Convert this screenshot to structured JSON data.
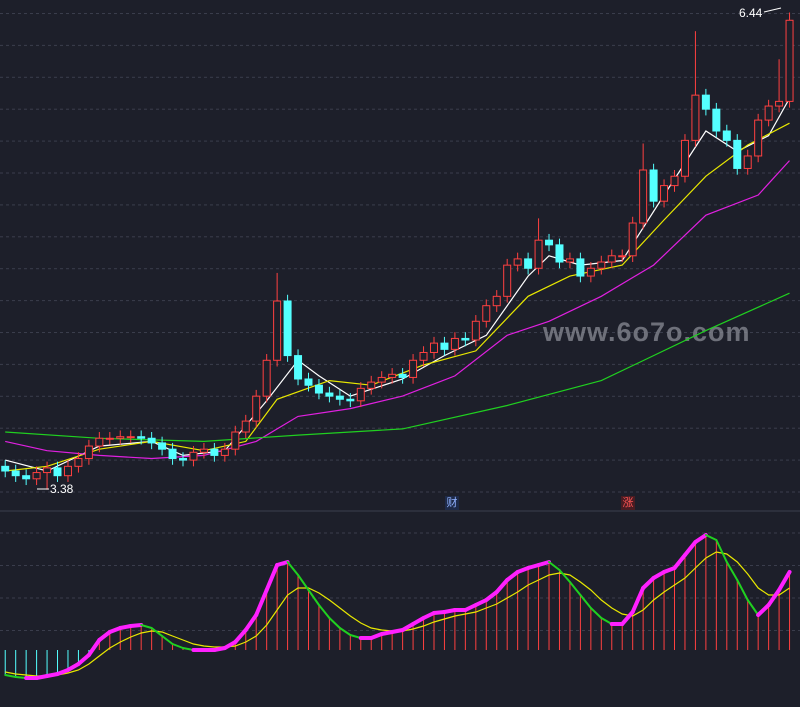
{
  "chart_data": [
    {
      "type": "candlestick",
      "xlim": [
        -0.5,
        76
      ],
      "ylim": [
        3.25,
        6.52
      ],
      "up_color": "#ff4040",
      "down_color": "#54ffff",
      "open": [
        3.53,
        3.5,
        3.47,
        3.45,
        3.49,
        3.52,
        3.47,
        3.53,
        3.58,
        3.66,
        3.71,
        3.71,
        3.72,
        3.72,
        3.71,
        3.68,
        3.64,
        3.58,
        3.57,
        3.62,
        3.64,
        3.6,
        3.64,
        3.75,
        3.82,
        3.98,
        4.21,
        4.59,
        4.24,
        4.09,
        4.05,
        4.0,
        3.98,
        3.96,
        3.95,
        4.03,
        4.07,
        4.1,
        4.12,
        4.1,
        4.21,
        4.26,
        4.32,
        4.28,
        4.35,
        4.34,
        4.46,
        4.56,
        4.62,
        4.82,
        4.86,
        4.8,
        4.98,
        4.95,
        4.84,
        4.86,
        4.75,
        4.8,
        4.84,
        4.88,
        4.88,
        5.09,
        5.43,
        5.23,
        5.33,
        5.39,
        5.62,
        5.91,
        5.82,
        5.68,
        5.62,
        5.44,
        5.52,
        5.75,
        5.84,
        5.87
      ],
      "high": [
        3.57,
        3.54,
        3.51,
        3.53,
        3.56,
        3.56,
        3.57,
        3.62,
        3.7,
        3.75,
        3.75,
        3.76,
        3.76,
        3.76,
        3.75,
        3.72,
        3.68,
        3.62,
        3.66,
        3.68,
        3.68,
        3.68,
        3.79,
        3.86,
        4.02,
        4.25,
        4.77,
        4.63,
        4.28,
        4.13,
        4.09,
        4.04,
        4.02,
        4.0,
        4.07,
        4.11,
        4.14,
        4.16,
        4.16,
        4.25,
        4.3,
        4.36,
        4.36,
        4.39,
        4.39,
        4.5,
        4.6,
        4.66,
        4.86,
        4.9,
        4.9,
        5.12,
        5.02,
        4.99,
        4.9,
        4.9,
        4.84,
        4.88,
        4.92,
        4.92,
        5.13,
        5.6,
        5.47,
        5.37,
        5.43,
        5.66,
        6.32,
        5.95,
        5.86,
        5.72,
        5.66,
        5.56,
        5.79,
        5.88,
        6.14,
        6.44
      ],
      "low": [
        3.46,
        3.43,
        3.41,
        3.41,
        3.38,
        3.43,
        3.43,
        3.49,
        3.54,
        3.62,
        3.67,
        3.67,
        3.68,
        3.67,
        3.64,
        3.6,
        3.54,
        3.53,
        3.53,
        3.58,
        3.56,
        3.56,
        3.6,
        3.71,
        3.78,
        3.94,
        4.17,
        4.2,
        4.05,
        4.01,
        3.96,
        3.94,
        3.92,
        3.91,
        3.91,
        3.99,
        4.03,
        4.06,
        4.06,
        4.06,
        4.17,
        4.22,
        4.24,
        4.24,
        4.3,
        4.3,
        4.42,
        4.52,
        4.58,
        4.78,
        4.76,
        4.76,
        4.91,
        4.8,
        4.8,
        4.71,
        4.71,
        4.76,
        4.8,
        4.84,
        4.84,
        5.05,
        5.19,
        5.19,
        5.29,
        5.35,
        5.58,
        5.78,
        5.64,
        5.58,
        5.4,
        5.4,
        5.48,
        5.71,
        5.8,
        5.83
      ],
      "close": [
        3.5,
        3.47,
        3.45,
        3.49,
        3.52,
        3.47,
        3.53,
        3.58,
        3.66,
        3.71,
        3.71,
        3.72,
        3.72,
        3.71,
        3.68,
        3.64,
        3.58,
        3.57,
        3.62,
        3.64,
        3.6,
        3.64,
        3.75,
        3.82,
        3.98,
        4.21,
        4.59,
        4.24,
        4.09,
        4.05,
        4.0,
        3.98,
        3.96,
        3.95,
        4.03,
        4.07,
        4.1,
        4.12,
        4.1,
        4.21,
        4.26,
        4.32,
        4.28,
        4.35,
        4.34,
        4.46,
        4.56,
        4.62,
        4.82,
        4.86,
        4.8,
        4.98,
        4.95,
        4.84,
        4.86,
        4.75,
        4.8,
        4.84,
        4.88,
        4.88,
        5.09,
        5.43,
        5.23,
        5.33,
        5.39,
        5.62,
        5.91,
        5.82,
        5.68,
        5.62,
        5.44,
        5.52,
        5.75,
        5.84,
        5.87,
        6.39
      ],
      "lines": [
        {
          "color": "#ffffff",
          "x": [
            0,
            4,
            9,
            14,
            17,
            21,
            25,
            28,
            30,
            33,
            38,
            42,
            46,
            50,
            52,
            55,
            59,
            63,
            67,
            70,
            73,
            75
          ],
          "values": [
            3.57,
            3.5,
            3.66,
            3.69,
            3.6,
            3.63,
            3.95,
            4.21,
            4.11,
            3.98,
            4.09,
            4.24,
            4.37,
            4.75,
            4.88,
            4.82,
            4.85,
            5.27,
            5.68,
            5.55,
            5.65,
            5.89
          ]
        },
        {
          "color": "#e8e800",
          "x": [
            0,
            4,
            9,
            14,
            19,
            23,
            26,
            31,
            35,
            40,
            45,
            50,
            54,
            59,
            63,
            67,
            71,
            75
          ],
          "values": [
            3.5,
            3.53,
            3.64,
            3.69,
            3.63,
            3.69,
            3.96,
            4.08,
            4.05,
            4.18,
            4.27,
            4.62,
            4.75,
            4.82,
            5.11,
            5.39,
            5.59,
            5.73
          ]
        },
        {
          "color": "#e020e0",
          "x": [
            0,
            4,
            9,
            14,
            19,
            24,
            28,
            33,
            38,
            43,
            48,
            52,
            57,
            62,
            67,
            72,
            75
          ],
          "values": [
            3.69,
            3.63,
            3.6,
            3.58,
            3.6,
            3.69,
            3.85,
            3.9,
            3.98,
            4.11,
            4.37,
            4.46,
            4.62,
            4.82,
            5.14,
            5.27,
            5.49
          ]
        },
        {
          "color": "#20d020",
          "x": [
            0,
            9,
            19,
            28,
            38,
            48,
            57,
            67,
            75
          ],
          "values": [
            3.75,
            3.71,
            3.69,
            3.73,
            3.77,
            3.92,
            4.08,
            4.4,
            4.64
          ]
        }
      ],
      "tags": [
        "财",
        "涨"
      ],
      "watermark": "www.6o7o.com"
    },
    {
      "type": "oscillator",
      "xlim": [
        -0.5,
        76
      ],
      "ylim": [
        -57,
        138
      ],
      "bar_up_color": "#ff4040",
      "bar_down_color": "#54ffff",
      "rise_color": "#ff20ff",
      "fall_color": "#20d020",
      "signal_color": "#e8e800",
      "values": [
        -25,
        -27,
        -28,
        -28,
        -26,
        -24,
        -20,
        -14,
        -5,
        10,
        18,
        22,
        24,
        25,
        22,
        14,
        6,
        2,
        0,
        0,
        0,
        2,
        8,
        20,
        35,
        60,
        85,
        88,
        75,
        60,
        45,
        32,
        22,
        15,
        12,
        12,
        16,
        18,
        20,
        26,
        32,
        37,
        38,
        40,
        40,
        45,
        50,
        58,
        70,
        78,
        82,
        85,
        88,
        80,
        68,
        55,
        42,
        32,
        26,
        26,
        38,
        62,
        72,
        78,
        82,
        95,
        108,
        115,
        110,
        88,
        70,
        50,
        35,
        45,
        60,
        78
      ],
      "signal": [
        -22,
        -24,
        -25,
        -26,
        -26,
        -25,
        -23,
        -20,
        -14,
        -6,
        2,
        8,
        13,
        17,
        19,
        18,
        14,
        10,
        6,
        4,
        3,
        3,
        4,
        8,
        14,
        25,
        40,
        55,
        62,
        62,
        57,
        50,
        42,
        34,
        27,
        22,
        20,
        19,
        19,
        21,
        24,
        28,
        31,
        34,
        36,
        38,
        42,
        46,
        52,
        58,
        65,
        70,
        75,
        77,
        75,
        68,
        60,
        50,
        42,
        36,
        34,
        40,
        50,
        58,
        65,
        72,
        82,
        92,
        98,
        96,
        88,
        76,
        62,
        55,
        55,
        62
      ]
    }
  ]
}
